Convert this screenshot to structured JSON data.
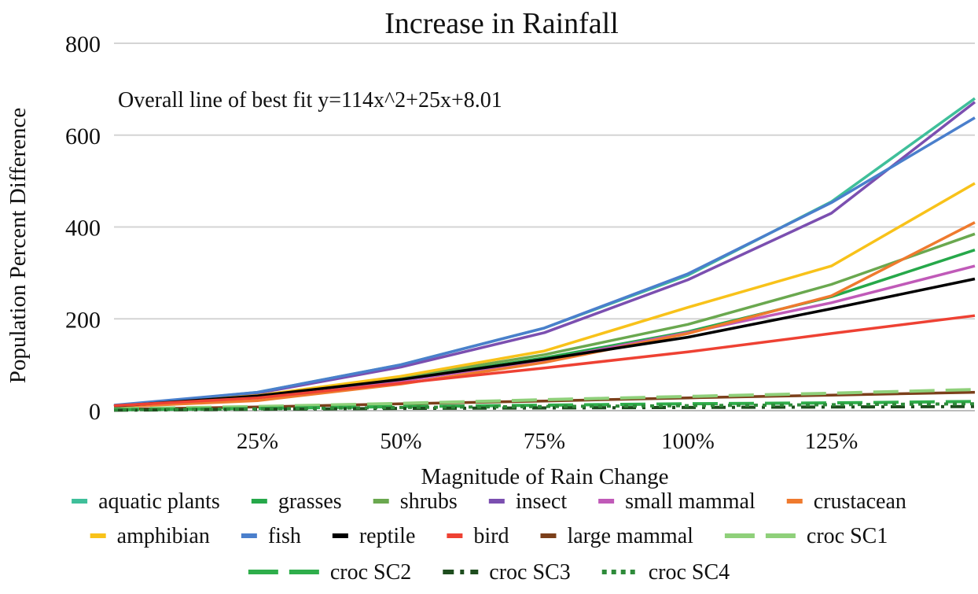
{
  "chart_data": {
    "type": "line",
    "title": "Increase in Rainfall",
    "xlabel": "Magnitude of Rain Change",
    "ylabel": "Population Percent Difference",
    "annotation": "Overall line of best fit y=114x^2+25x+8.01",
    "x": [
      0,
      25,
      50,
      75,
      100,
      125,
      150
    ],
    "x_tick_values": [
      25,
      50,
      75,
      100,
      125
    ],
    "x_tick_labels": [
      "25%",
      "50%",
      "75%",
      "100%",
      "125%"
    ],
    "y_ticks": [
      0,
      200,
      400,
      600,
      800
    ],
    "y_tick_labels": [
      "0",
      "200",
      "400",
      "600",
      "800"
    ],
    "xlim": [
      0,
      150
    ],
    "ylim": [
      0,
      800
    ],
    "grid": "horizontal",
    "legend_position": "bottom",
    "series": [
      {
        "name": "aquatic plants",
        "color": "#3fbf9a",
        "dash": "solid",
        "values": [
          10,
          40,
          100,
          180,
          295,
          455,
          680
        ]
      },
      {
        "name": "grasses",
        "color": "#26a84a",
        "dash": "solid",
        "values": [
          9,
          30,
          68,
          115,
          172,
          248,
          350
        ]
      },
      {
        "name": "shrubs",
        "color": "#6aa84f",
        "dash": "solid",
        "values": [
          10,
          32,
          72,
          122,
          188,
          275,
          385
        ]
      },
      {
        "name": "insect",
        "color": "#7b4fb0",
        "dash": "solid",
        "values": [
          10,
          38,
          95,
          170,
          285,
          430,
          672
        ]
      },
      {
        "name": "small mammal",
        "color": "#c05ab8",
        "dash": "solid",
        "values": [
          9,
          30,
          65,
          110,
          170,
          235,
          315
        ]
      },
      {
        "name": "crustacean",
        "color": "#ef7a2e",
        "dash": "solid",
        "values": [
          8,
          22,
          58,
          105,
          168,
          250,
          410
        ]
      },
      {
        "name": "amphibian",
        "color": "#f8c21a",
        "dash": "solid",
        "values": [
          10,
          33,
          75,
          130,
          225,
          315,
          495
        ]
      },
      {
        "name": "fish",
        "color": "#4a7fcc",
        "dash": "solid",
        "values": [
          12,
          40,
          100,
          180,
          298,
          453,
          638
        ]
      },
      {
        "name": "reptile",
        "color": "#000000",
        "dash": "solid",
        "values": [
          10,
          32,
          68,
          112,
          160,
          222,
          287
        ]
      },
      {
        "name": "bird",
        "color": "#ee4133",
        "dash": "solid",
        "values": [
          11,
          28,
          60,
          93,
          128,
          168,
          207
        ]
      },
      {
        "name": "large mammal",
        "color": "#7b3f1a",
        "dash": "solid",
        "values": [
          3,
          8,
          15,
          21,
          28,
          34,
          40
        ]
      },
      {
        "name": "croc SC1",
        "color": "#8fd07a",
        "dash": "longdash",
        "values": [
          4,
          9,
          16,
          24,
          31,
          38,
          46
        ]
      },
      {
        "name": "croc SC2",
        "color": "#2fae4b",
        "dash": "longdash",
        "values": [
          2,
          5,
          9,
          12,
          15,
          17,
          20
        ]
      },
      {
        "name": "croc SC3",
        "color": "#1e4d1e",
        "dash": "dashdot",
        "values": [
          1,
          3,
          5,
          6,
          7,
          8,
          9
        ]
      },
      {
        "name": "croc SC4",
        "color": "#2e8b3a",
        "dash": "dot",
        "values": [
          2,
          4,
          7,
          9,
          11,
          13,
          15
        ]
      }
    ]
  }
}
